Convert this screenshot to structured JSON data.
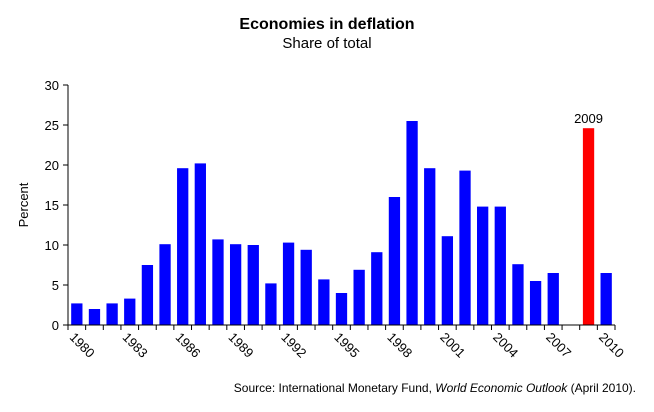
{
  "chart_data": {
    "type": "bar",
    "title": "Economies in deflation",
    "subtitle": "Share of total",
    "ylabel": "Percent",
    "xlabel": "",
    "ylim": [
      0,
      30
    ],
    "yticks": [
      0,
      5,
      10,
      15,
      20,
      25,
      30
    ],
    "grid": false,
    "categories": [
      "1980",
      "1981",
      "1982",
      "1983",
      "1984",
      "1985",
      "1986",
      "1987",
      "1988",
      "1989",
      "1990",
      "1991",
      "1992",
      "1993",
      "1994",
      "1995",
      "1996",
      "1997",
      "1998",
      "1999",
      "2000",
      "2001",
      "2002",
      "2003",
      "2004",
      "2005",
      "2006",
      "2007",
      "2008",
      "2009",
      "2010"
    ],
    "xtick_labels": [
      "1980",
      "1983",
      "1986",
      "1989",
      "1992",
      "1995",
      "1998",
      "2001",
      "2004",
      "2007",
      "2010"
    ],
    "values": [
      2.7,
      2.0,
      2.7,
      3.3,
      7.5,
      10.1,
      19.6,
      20.2,
      10.7,
      10.1,
      10.0,
      5.2,
      10.3,
      9.4,
      5.7,
      4.0,
      6.9,
      9.1,
      16.0,
      25.5,
      19.6,
      11.1,
      19.3,
      14.8,
      14.8,
      7.6,
      5.5,
      6.5,
      0,
      24.6,
      6.5
    ],
    "highlight": {
      "category": "2009",
      "label": "2009",
      "color": "#ff0000"
    },
    "bar_color": "#0000ff",
    "source_prefix": "Source:  International Monetary Fund, ",
    "source_italic": "World Economic Outlook",
    "source_suffix": " (April 2010)."
  }
}
